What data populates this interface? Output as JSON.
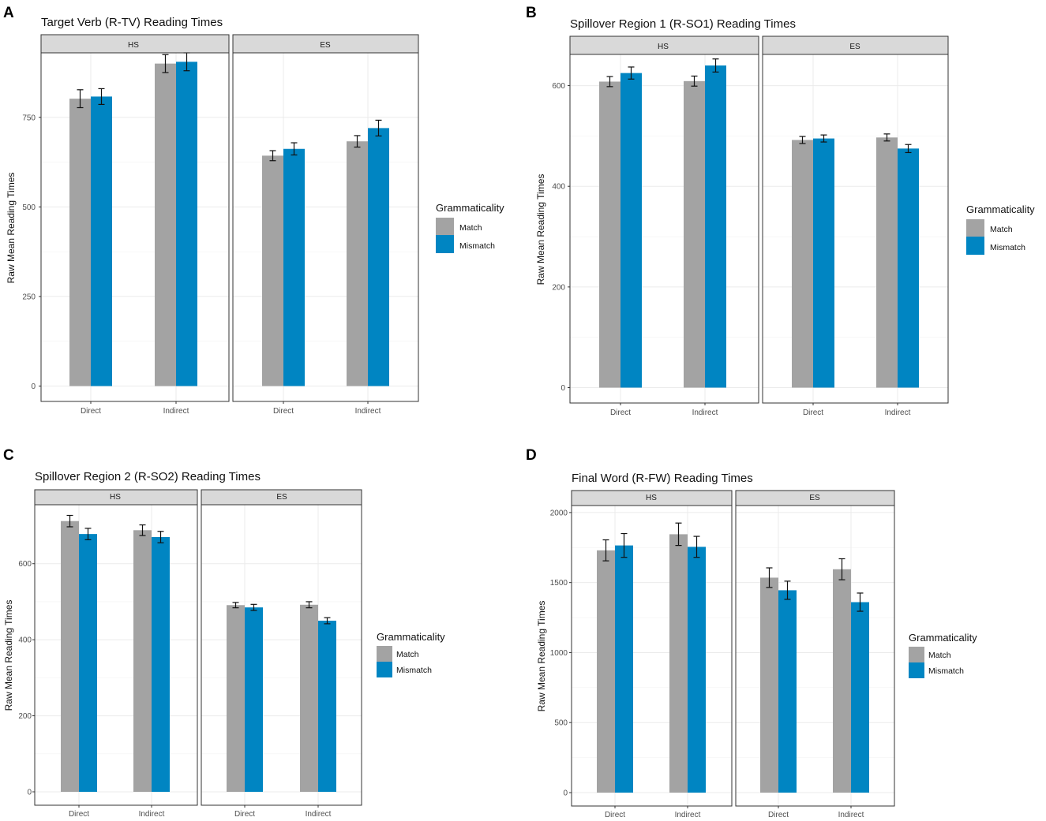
{
  "colors": {
    "match": "#a3a3a3",
    "mismatch": "#0085c2",
    "grid": "#ebebeb",
    "strip": "#d9d9d9",
    "frame": "#333333"
  },
  "chart_data": [
    {
      "id": "A",
      "panel_label": "A",
      "type": "bar",
      "title": "Target Verb (R-TV) Reading Times",
      "ylabel": "Raw Mean Reading Times",
      "ylim": [
        0,
        930
      ],
      "yticks": [
        0,
        250,
        500,
        750
      ],
      "ytick_labels": [
        "0",
        "250",
        "500",
        "750"
      ],
      "legend_title": "Grammaticality",
      "series_names": [
        "Match",
        "Mismatch"
      ],
      "facets": [
        {
          "name": "HS",
          "categories": [
            "Direct",
            "Indirect"
          ],
          "series": [
            {
              "name": "Match",
              "values": [
                802,
                900
              ],
              "err": [
                25,
                25
              ]
            },
            {
              "name": "Mismatch",
              "values": [
                808,
                905
              ],
              "err": [
                22,
                25
              ]
            }
          ]
        },
        {
          "name": "ES",
          "categories": [
            "Direct",
            "Indirect"
          ],
          "series": [
            {
              "name": "Match",
              "values": [
                643,
                683
              ],
              "err": [
                14,
                16
              ]
            },
            {
              "name": "Mismatch",
              "values": [
                662,
                720
              ],
              "err": [
                17,
                22
              ]
            }
          ]
        }
      ]
    },
    {
      "id": "B",
      "panel_label": "B",
      "type": "bar",
      "title": "Spillover Region 1 (R-SO1) Reading Times",
      "ylabel": "Raw Mean Reading Times",
      "ylim": [
        0,
        662
      ],
      "yticks": [
        0,
        200,
        400,
        600
      ],
      "ytick_labels": [
        "0",
        "200",
        "400",
        "600"
      ],
      "legend_title": "Grammaticality",
      "series_names": [
        "Match",
        "Mismatch"
      ],
      "facets": [
        {
          "name": "HS",
          "categories": [
            "Direct",
            "Indirect"
          ],
          "series": [
            {
              "name": "Match",
              "values": [
                608,
                609
              ],
              "err": [
                10,
                10
              ]
            },
            {
              "name": "Mismatch",
              "values": [
                625,
                640
              ],
              "err": [
                12,
                13
              ]
            }
          ]
        },
        {
          "name": "ES",
          "categories": [
            "Direct",
            "Indirect"
          ],
          "series": [
            {
              "name": "Match",
              "values": [
                492,
                497
              ],
              "err": [
                7,
                7
              ]
            },
            {
              "name": "Mismatch",
              "values": [
                495,
                475
              ],
              "err": [
                7,
                8
              ]
            }
          ]
        }
      ]
    },
    {
      "id": "C",
      "panel_label": "C",
      "type": "bar",
      "title": "Spillover Region 2 (R-SO2) Reading Times",
      "ylabel": "Raw Mean Reading Times",
      "ylim": [
        0,
        755
      ],
      "yticks": [
        0,
        200,
        400,
        600
      ],
      "ytick_labels": [
        "0",
        "200",
        "400",
        "600"
      ],
      "legend_title": "Grammaticality",
      "series_names": [
        "Match",
        "Mismatch"
      ],
      "facets": [
        {
          "name": "HS",
          "categories": [
            "Direct",
            "Indirect"
          ],
          "series": [
            {
              "name": "Match",
              "values": [
                712,
                688
              ],
              "err": [
                15,
                14
              ]
            },
            {
              "name": "Mismatch",
              "values": [
                678,
                670
              ],
              "err": [
                15,
                15
              ]
            }
          ]
        },
        {
          "name": "ES",
          "categories": [
            "Direct",
            "Indirect"
          ],
          "series": [
            {
              "name": "Match",
              "values": [
                491,
                492
              ],
              "err": [
                7,
                8
              ]
            },
            {
              "name": "Mismatch",
              "values": [
                485,
                450
              ],
              "err": [
                8,
                8
              ]
            }
          ]
        }
      ]
    },
    {
      "id": "D",
      "panel_label": "D",
      "type": "bar",
      "title": "Final Word (R-FW) Reading Times",
      "ylabel": "Raw Mean Reading Times",
      "ylim": [
        0,
        2050
      ],
      "yticks": [
        0,
        500,
        1000,
        1500,
        2000
      ],
      "ytick_labels": [
        "0",
        "500",
        "1000",
        "1500",
        "2000"
      ],
      "legend_title": "Grammaticality",
      "series_names": [
        "Match",
        "Mismatch"
      ],
      "facets": [
        {
          "name": "HS",
          "categories": [
            "Direct",
            "Indirect"
          ],
          "series": [
            {
              "name": "Match",
              "values": [
                1730,
                1845
              ],
              "err": [
                75,
                80
              ]
            },
            {
              "name": "Mismatch",
              "values": [
                1765,
                1755
              ],
              "err": [
                85,
                75
              ]
            }
          ]
        },
        {
          "name": "ES",
          "categories": [
            "Direct",
            "Indirect"
          ],
          "series": [
            {
              "name": "Match",
              "values": [
                1535,
                1595
              ],
              "err": [
                70,
                75
              ]
            },
            {
              "name": "Mismatch",
              "values": [
                1445,
                1360
              ],
              "err": [
                65,
                65
              ]
            }
          ]
        }
      ]
    }
  ]
}
